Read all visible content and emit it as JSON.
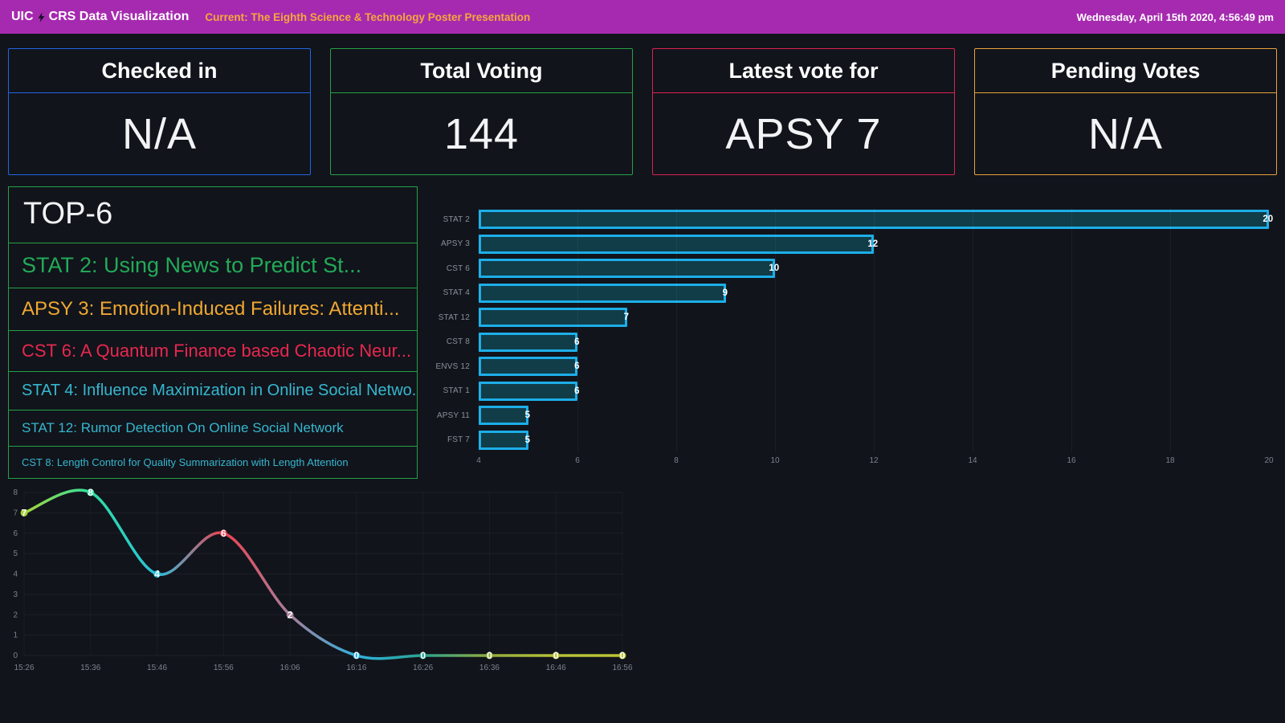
{
  "header": {
    "brand_left": "UIC",
    "bolt_icon": "lightning-bolt",
    "brand_right": "CRS Data Visualization",
    "current": "Current: The Eighth Science & Technology Poster Presentation",
    "datetime": "Wednesday, April 15th 2020, 4:56:49 pm",
    "bg_color": "#a62ab0",
    "current_color": "#f5a83a"
  },
  "stat_cards": [
    {
      "title": "Checked in",
      "value": "N/A",
      "color": "#2265e0"
    },
    {
      "title": "Total Voting",
      "value": "144",
      "color": "#26a047"
    },
    {
      "title": "Latest vote for",
      "value": "APSY 7",
      "color": "#dc2150"
    },
    {
      "title": "Pending Votes",
      "value": "N/A",
      "color": "#e9a23c"
    }
  ],
  "top6": {
    "title": "TOP-6",
    "border_color": "#26a047",
    "items": [
      {
        "text": "STAT 2: Using News to Predict St...",
        "color": "#23aa58",
        "size": 27
      },
      {
        "text": "APSY 3: Emotion-Induced Failures: Attenti...",
        "color": "#f0a832",
        "size": 24
      },
      {
        "text": "CST 6: A Quantum Finance based Chaotic Neur...",
        "color": "#e8274e",
        "size": 22
      },
      {
        "text": "STAT 4: Influence Maximization in Online Social Netwo...",
        "color": "#36b7cf",
        "size": 20
      },
      {
        "text": "STAT 12: Rumor Detection On Online Social Network",
        "color": "#36b7cf",
        "size": 17
      },
      {
        "text": "CST 8: Length Control for Quality Summarization with Length Attention",
        "color": "#36b7cf",
        "size": 13
      }
    ]
  },
  "chart_data": [
    {
      "type": "bar",
      "orientation": "horizontal",
      "title": "",
      "categories": [
        "STAT 2",
        "APSY 3",
        "CST 6",
        "STAT 4",
        "STAT 12",
        "CST 8",
        "ENVS 12",
        "STAT 1",
        "APSY 11",
        "FST 7"
      ],
      "values": [
        20,
        12,
        10,
        9,
        7,
        6,
        6,
        6,
        5,
        5
      ],
      "xlim": [
        4,
        20
      ],
      "x_ticks": [
        4,
        6,
        8,
        10,
        12,
        14,
        16,
        18,
        20
      ],
      "grid": true,
      "bar_border_color": "#1caee8",
      "bar_fill_color": "#113d49",
      "value_label_color": "#ffffff"
    },
    {
      "type": "line",
      "title": "",
      "x": [
        "15:26",
        "15:36",
        "15:46",
        "15:56",
        "16:06",
        "16:16",
        "16:26",
        "16:36",
        "16:46",
        "16:56"
      ],
      "values": [
        7,
        8,
        4,
        6,
        2,
        0,
        0,
        0,
        0,
        0
      ],
      "ylim": [
        0,
        8
      ],
      "y_ticks": [
        0,
        1,
        2,
        3,
        4,
        5,
        6,
        7,
        8
      ],
      "grid": true,
      "legend": "none",
      "point_label_color": "#ffffff",
      "gradient_colors": [
        "#a8d53a",
        "#2de0a0",
        "#2cc0dc",
        "#ee4150",
        "#a77f99",
        "#2fb1e0",
        "#2aa38e",
        "#93ac3d",
        "#b8c238",
        "#bcc534"
      ]
    }
  ]
}
